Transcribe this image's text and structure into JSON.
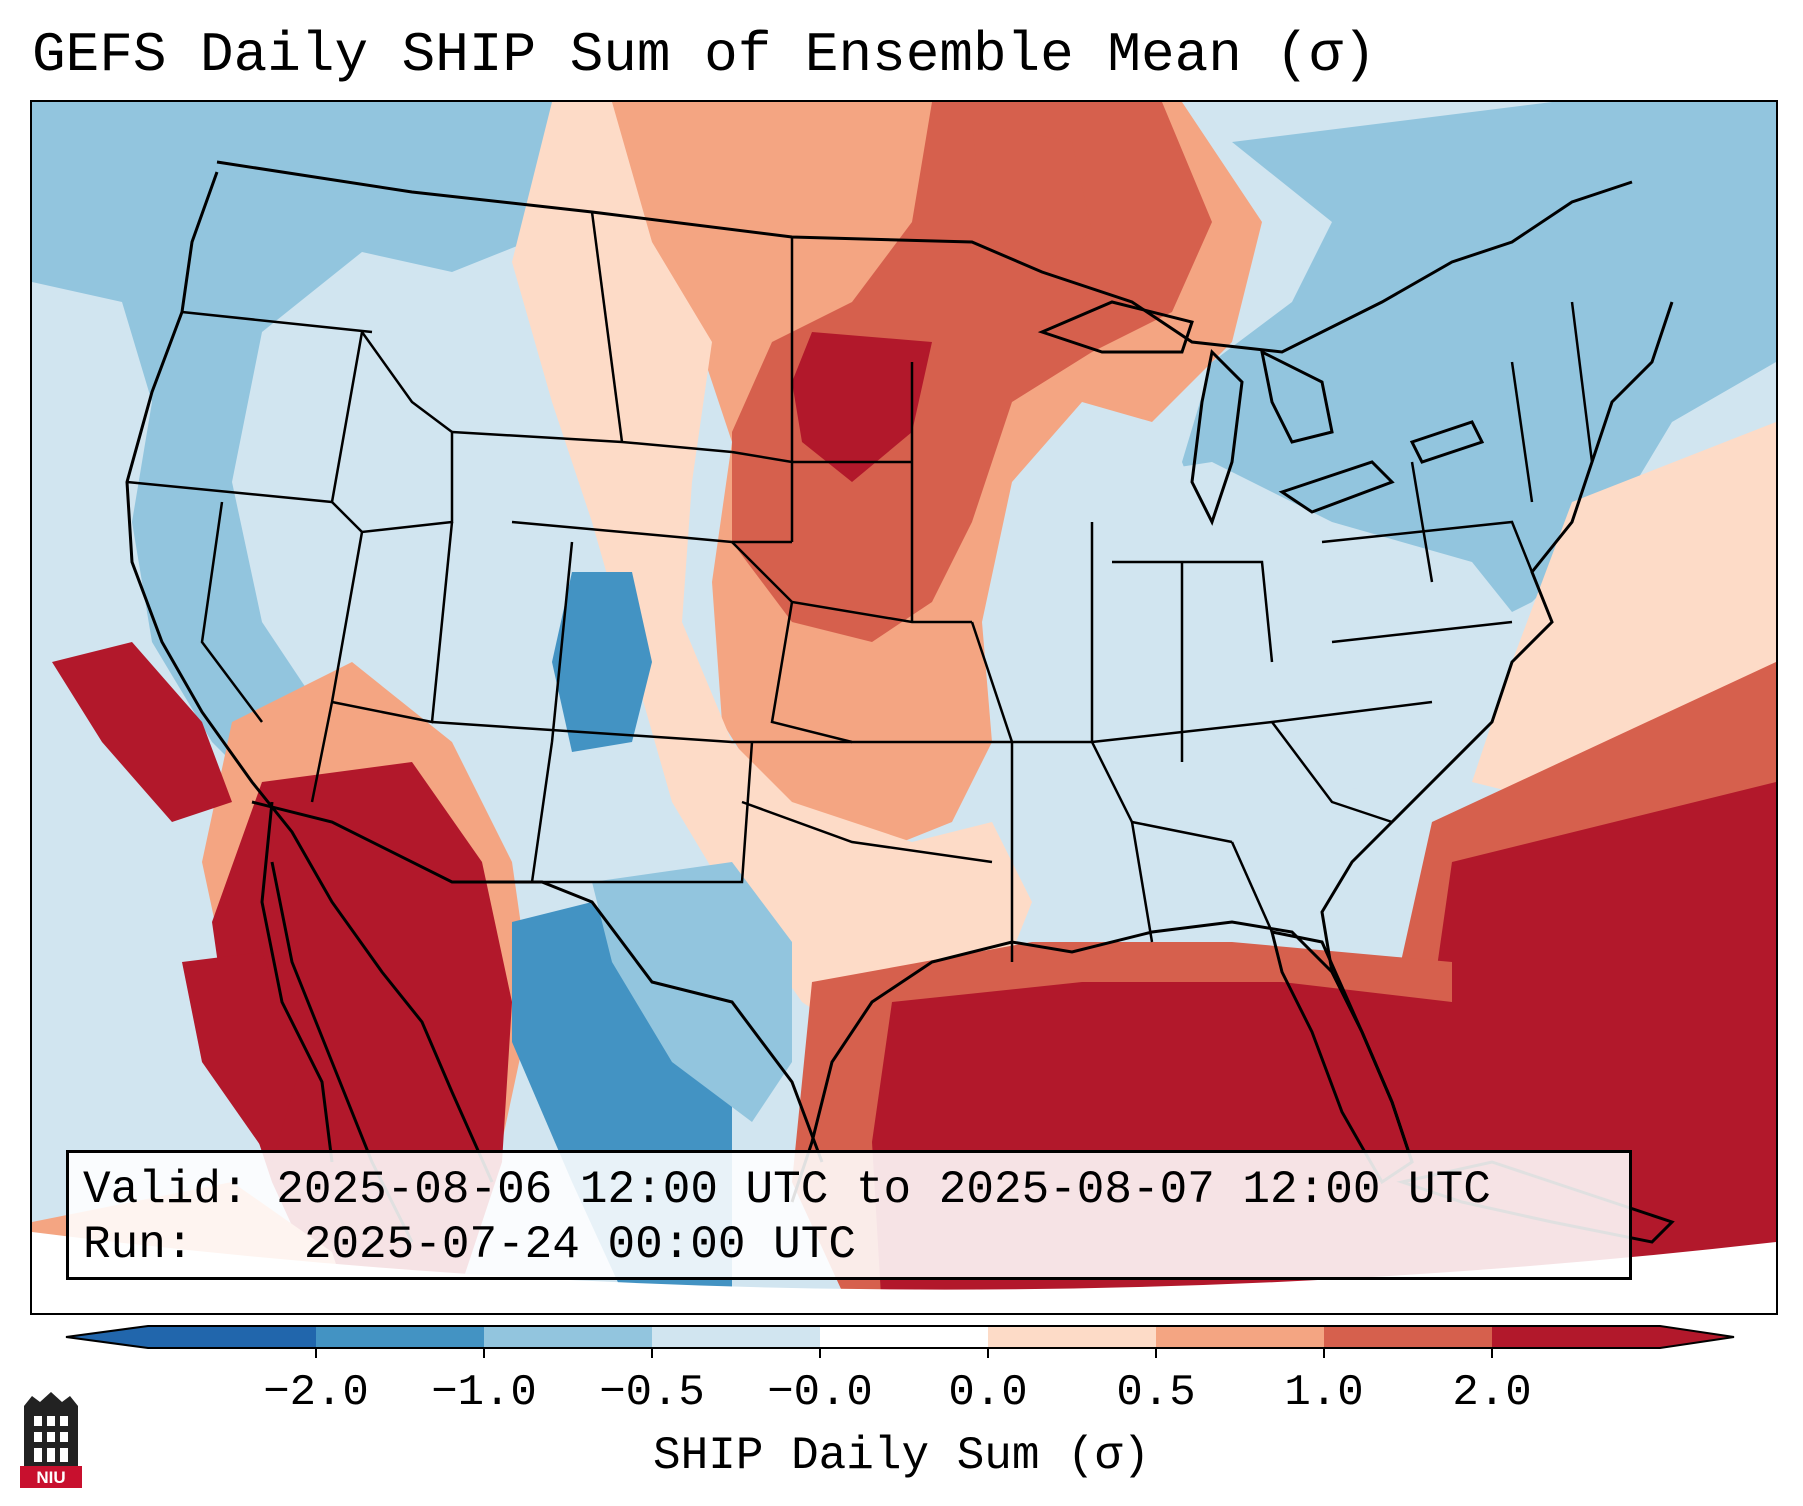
{
  "title": "GEFS Daily SHIP Sum of Ensemble Mean (σ)",
  "info": {
    "valid_label": "Valid:",
    "valid_value": "2025-08-06 12:00 UTC to 2025-08-07 12:00 UTC",
    "run_label": "Run:",
    "run_value": "2025-07-24 00:00 UTC"
  },
  "colorbar": {
    "label": "SHIP Daily Sum (σ)",
    "ticks": [
      "−2.0",
      "−1.0",
      "−0.5",
      "−0.0",
      "0.0",
      "0.5",
      "1.0",
      "2.0"
    ],
    "colors": [
      "#2166ac",
      "#4393c3",
      "#92c5de",
      "#d1e5f0",
      "#ffffff",
      "#fddbc7",
      "#f4a582",
      "#d6604d",
      "#b2182b"
    ],
    "under_color": "#2166ac",
    "over_color": "#b2182b"
  },
  "logo": {
    "text": "NIU"
  }
}
